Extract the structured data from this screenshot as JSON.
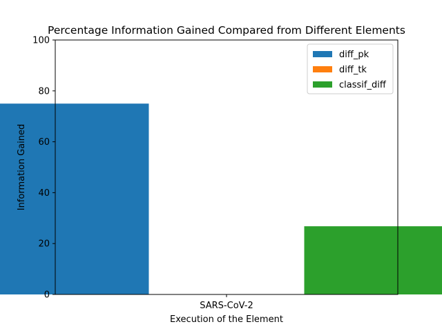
{
  "chart_data": {
    "type": "bar",
    "title": "Percentage Information Gained Compared from Different Elements",
    "xlabel": "Execution of the Element",
    "ylabel": "Information Gained",
    "categories": [
      "SARS-CoV-2"
    ],
    "ylim": [
      0,
      100
    ],
    "yticks": [
      0,
      20,
      40,
      60,
      80,
      100
    ],
    "grid": false,
    "legend_position": "top-right",
    "series": [
      {
        "name": "diff_pk",
        "values": [
          75
        ],
        "color": "#1f77b4"
      },
      {
        "name": "diff_tk",
        "values": [
          0
        ],
        "color": "#ff7f0e"
      },
      {
        "name": "classif_diff",
        "values": [
          26.8
        ],
        "color": "#2ca02c"
      }
    ]
  }
}
